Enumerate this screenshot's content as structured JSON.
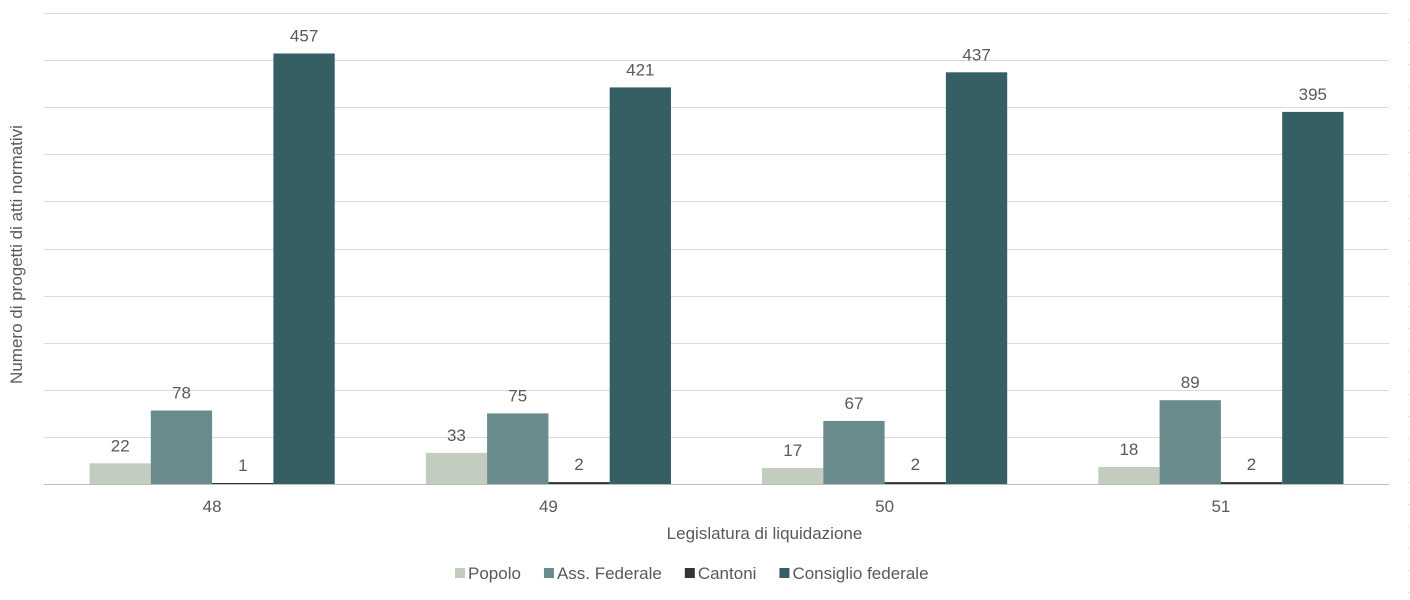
{
  "chart_data": {
    "type": "bar",
    "title": "",
    "xlabel": "Legislatura di liquidazione",
    "ylabel": "Numero di progetti di atti normativi",
    "categories": [
      "48",
      "49",
      "50",
      "51"
    ],
    "series": [
      {
        "name": "Popolo",
        "color": "#c3cdbf",
        "values": [
          22,
          33,
          17,
          18
        ]
      },
      {
        "name": "Ass. Federale",
        "color": "#6a8b8b",
        "values": [
          78,
          75,
          67,
          89
        ]
      },
      {
        "name": "Cantoni",
        "color": "#333333",
        "values": [
          1,
          2,
          2,
          2
        ]
      },
      {
        "name": "Consiglio federale",
        "color": "#365f63",
        "values": [
          457,
          421,
          437,
          395
        ]
      }
    ],
    "ylim": [
      0,
      500
    ],
    "grid": true,
    "legend_position": "bottom",
    "data_labels": true
  }
}
